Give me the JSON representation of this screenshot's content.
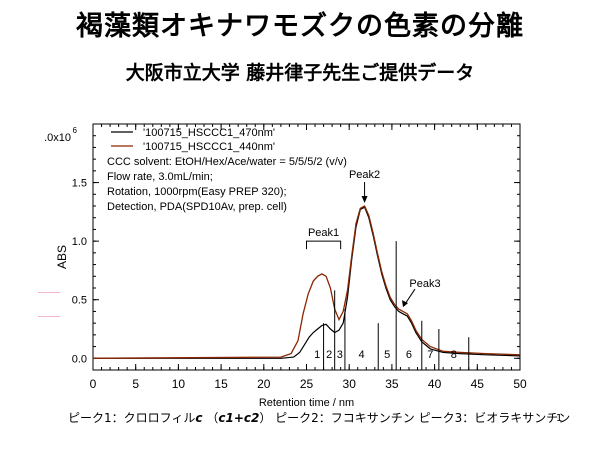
{
  "page": {
    "title": "褐藻類オキナワモズクの色素の分離",
    "subtitle": "大阪市立大学 藤井律子先生ご提供データ",
    "caption_parts": [
      "ピーク1：クロロフィル",
      "c",
      " （",
      "c1+c2",
      "） ピーク2：フコキサンチン ピーク3：ビオラキサンチン"
    ],
    "slide_number": "1"
  },
  "chart_data": {
    "type": "line",
    "xlabel": "Retention time / nm",
    "ylabel": "ABS",
    "xlim": [
      0,
      50
    ],
    "ylim": [
      -0.1,
      2.0
    ],
    "x_ticks": [
      0,
      5,
      10,
      15,
      20,
      25,
      30,
      35,
      40,
      45,
      50
    ],
    "y_ticks": [
      0.0,
      0.5,
      1.0,
      1.5
    ],
    "y_tick_labels": [
      "0.0",
      "0.5",
      "1.0",
      "1.5"
    ],
    "y_top_label": ".0x10",
    "y_top_exponent": "6",
    "legend_position": "top-left",
    "series": [
      {
        "name": "'100715_HSCCC1_470nm'",
        "color": "#000000",
        "x": [
          0,
          22,
          23.5,
          24.2,
          24.8,
          25.3,
          25.8,
          26.3,
          26.8,
          27.3,
          27.8,
          28.3,
          28.8,
          29.3,
          29.8,
          30.3,
          30.8,
          31.3,
          31.8,
          32.3,
          32.8,
          33.3,
          33.8,
          34.3,
          34.8,
          35.3,
          35.8,
          36.3,
          36.8,
          37.3,
          37.8,
          38.5,
          39.5,
          41,
          43,
          46,
          50
        ],
        "y": [
          0.0,
          0.0,
          0.01,
          0.05,
          0.12,
          0.18,
          0.22,
          0.25,
          0.28,
          0.29,
          0.25,
          0.22,
          0.24,
          0.3,
          0.52,
          0.85,
          1.12,
          1.27,
          1.29,
          1.2,
          1.05,
          0.88,
          0.72,
          0.6,
          0.5,
          0.44,
          0.4,
          0.38,
          0.36,
          0.3,
          0.22,
          0.14,
          0.08,
          0.05,
          0.04,
          0.03,
          0.02
        ]
      },
      {
        "name": "'100715_HSCCC1_440nm'",
        "color": "#8b2500",
        "x": [
          0,
          22,
          23.2,
          24,
          24.6,
          25.2,
          25.8,
          26.3,
          26.8,
          27.3,
          27.8,
          28.3,
          28.8,
          29.3,
          29.8,
          30.3,
          30.8,
          31.3,
          31.8,
          32.3,
          32.8,
          33.3,
          33.8,
          34.3,
          34.8,
          35.3,
          35.8,
          36.3,
          36.8,
          37.3,
          37.8,
          38.5,
          39.5,
          41,
          43,
          46,
          50
        ],
        "y": [
          0.0,
          0.01,
          0.04,
          0.15,
          0.38,
          0.55,
          0.66,
          0.7,
          0.72,
          0.7,
          0.6,
          0.42,
          0.33,
          0.4,
          0.58,
          0.88,
          1.15,
          1.28,
          1.3,
          1.22,
          1.07,
          0.9,
          0.74,
          0.62,
          0.52,
          0.46,
          0.42,
          0.4,
          0.38,
          0.32,
          0.24,
          0.16,
          0.1,
          0.06,
          0.05,
          0.04,
          0.03
        ]
      }
    ],
    "annotation_lines": [
      "CCC solvent: EtOH/Hex/Ace/water = 5/5/5/2 (v/v)",
      "Flow rate, 3.0mL/min;",
      "Rotation, 1000rpm(Easy PREP 320);",
      "Detection, PDA(SPD10Av, prep. cell)"
    ],
    "peaks": [
      {
        "label": "Peak1",
        "x_start": 25,
        "x_end": 29
      },
      {
        "label": "Peak2",
        "x": 31.8,
        "y": 1.3
      },
      {
        "label": "Peak3",
        "x": 36.3,
        "y": 0.42
      }
    ],
    "fractions": [
      {
        "label": "1",
        "x_left": 25.5,
        "x_right": 27,
        "top": 0.3
      },
      {
        "label": "2",
        "x_left": 27,
        "x_right": 28.3,
        "top": 0.58
      },
      {
        "label": "3",
        "x_left": 28.3,
        "x_right": 29.5,
        "top": 0.42
      },
      {
        "label": "4",
        "x_left": 29.5,
        "x_right": 33.4,
        "top": 0.3
      },
      {
        "label": "5",
        "x_left": 33.4,
        "x_right": 35.5,
        "top": 1.0
      },
      {
        "label": "6",
        "x_left": 35.5,
        "x_right": 38.5,
        "top": 0.32
      },
      {
        "label": "7",
        "x_left": 38.5,
        "x_right": 40.5,
        "top": 0.25
      },
      {
        "label": "8",
        "x_left": 40.5,
        "x_right": 44,
        "top": 0.18
      }
    ]
  }
}
